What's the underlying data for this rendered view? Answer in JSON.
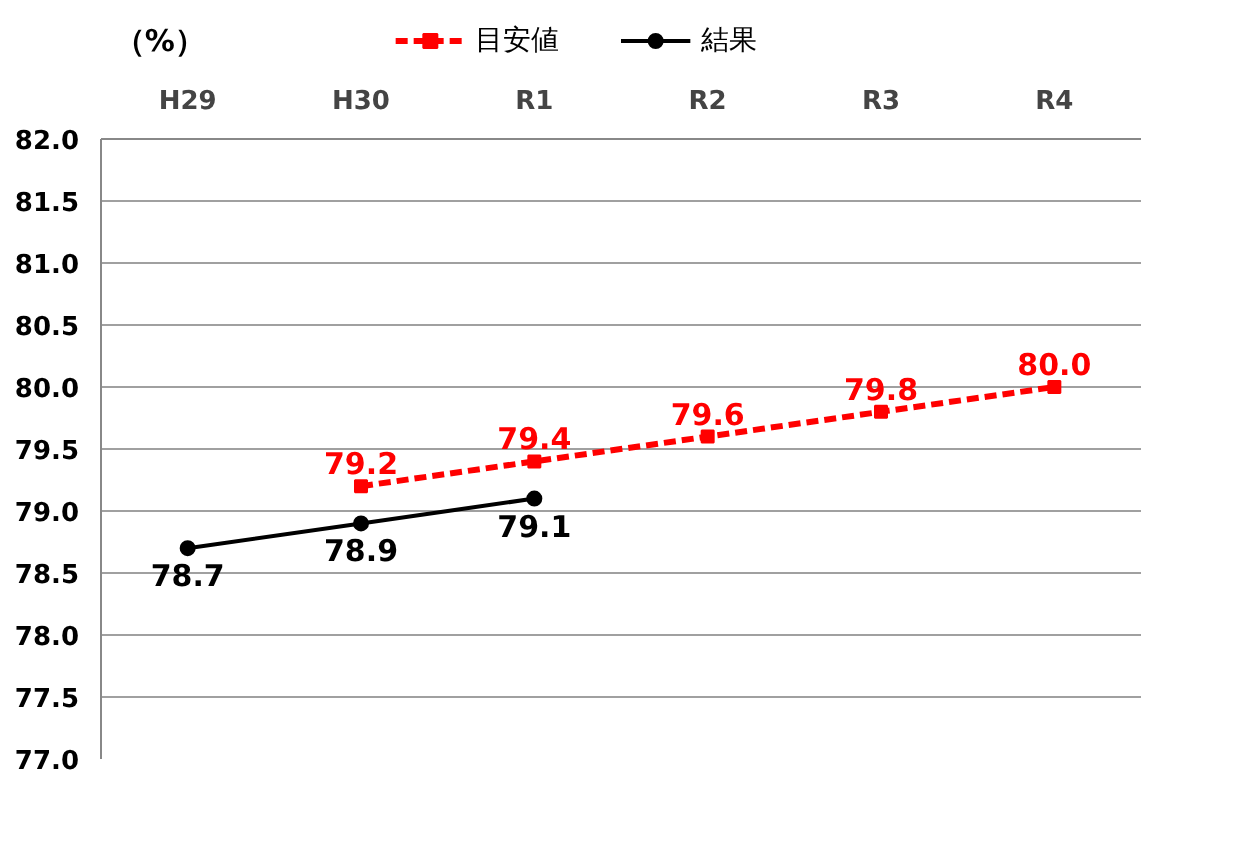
{
  "chart_data": {
    "type": "line",
    "ylabel": "（%）",
    "categories": [
      "H29",
      "H30",
      "R1",
      "R2",
      "R3",
      "R4"
    ],
    "series": [
      {
        "name": "目安値",
        "color": "#ff0000",
        "values": [
          null,
          79.2,
          79.4,
          79.6,
          79.8,
          80.0
        ],
        "value_labels": [
          null,
          "79.2",
          "79.4",
          "79.6",
          "79.8",
          "80.0"
        ],
        "marker": "square",
        "line_style": "dashed"
      },
      {
        "name": "結果",
        "color": "#000000",
        "values": [
          78.7,
          78.9,
          79.1,
          null,
          null,
          null
        ],
        "value_labels": [
          "78.7",
          "78.9",
          "79.1",
          null,
          null,
          null
        ],
        "marker": "circle",
        "line_style": "solid"
      }
    ],
    "ylim": [
      77.0,
      82.0
    ],
    "yticks": [
      {
        "value": 77,
        "label": "77.0"
      },
      {
        "value": 77.5,
        "label": "77.5"
      },
      {
        "value": 78,
        "label": "78.0"
      },
      {
        "value": 78.5,
        "label": "78.5"
      },
      {
        "value": 79,
        "label": "79.0"
      },
      {
        "value": 79.5,
        "label": "79.5"
      },
      {
        "value": 80,
        "label": "80.0"
      },
      {
        "value": 80.5,
        "label": "80.5"
      },
      {
        "value": 81,
        "label": "81.0"
      },
      {
        "value": 81.5,
        "label": "81.5"
      },
      {
        "value": 82,
        "label": "82.0"
      }
    ],
    "grid": "y",
    "legend": "top"
  }
}
